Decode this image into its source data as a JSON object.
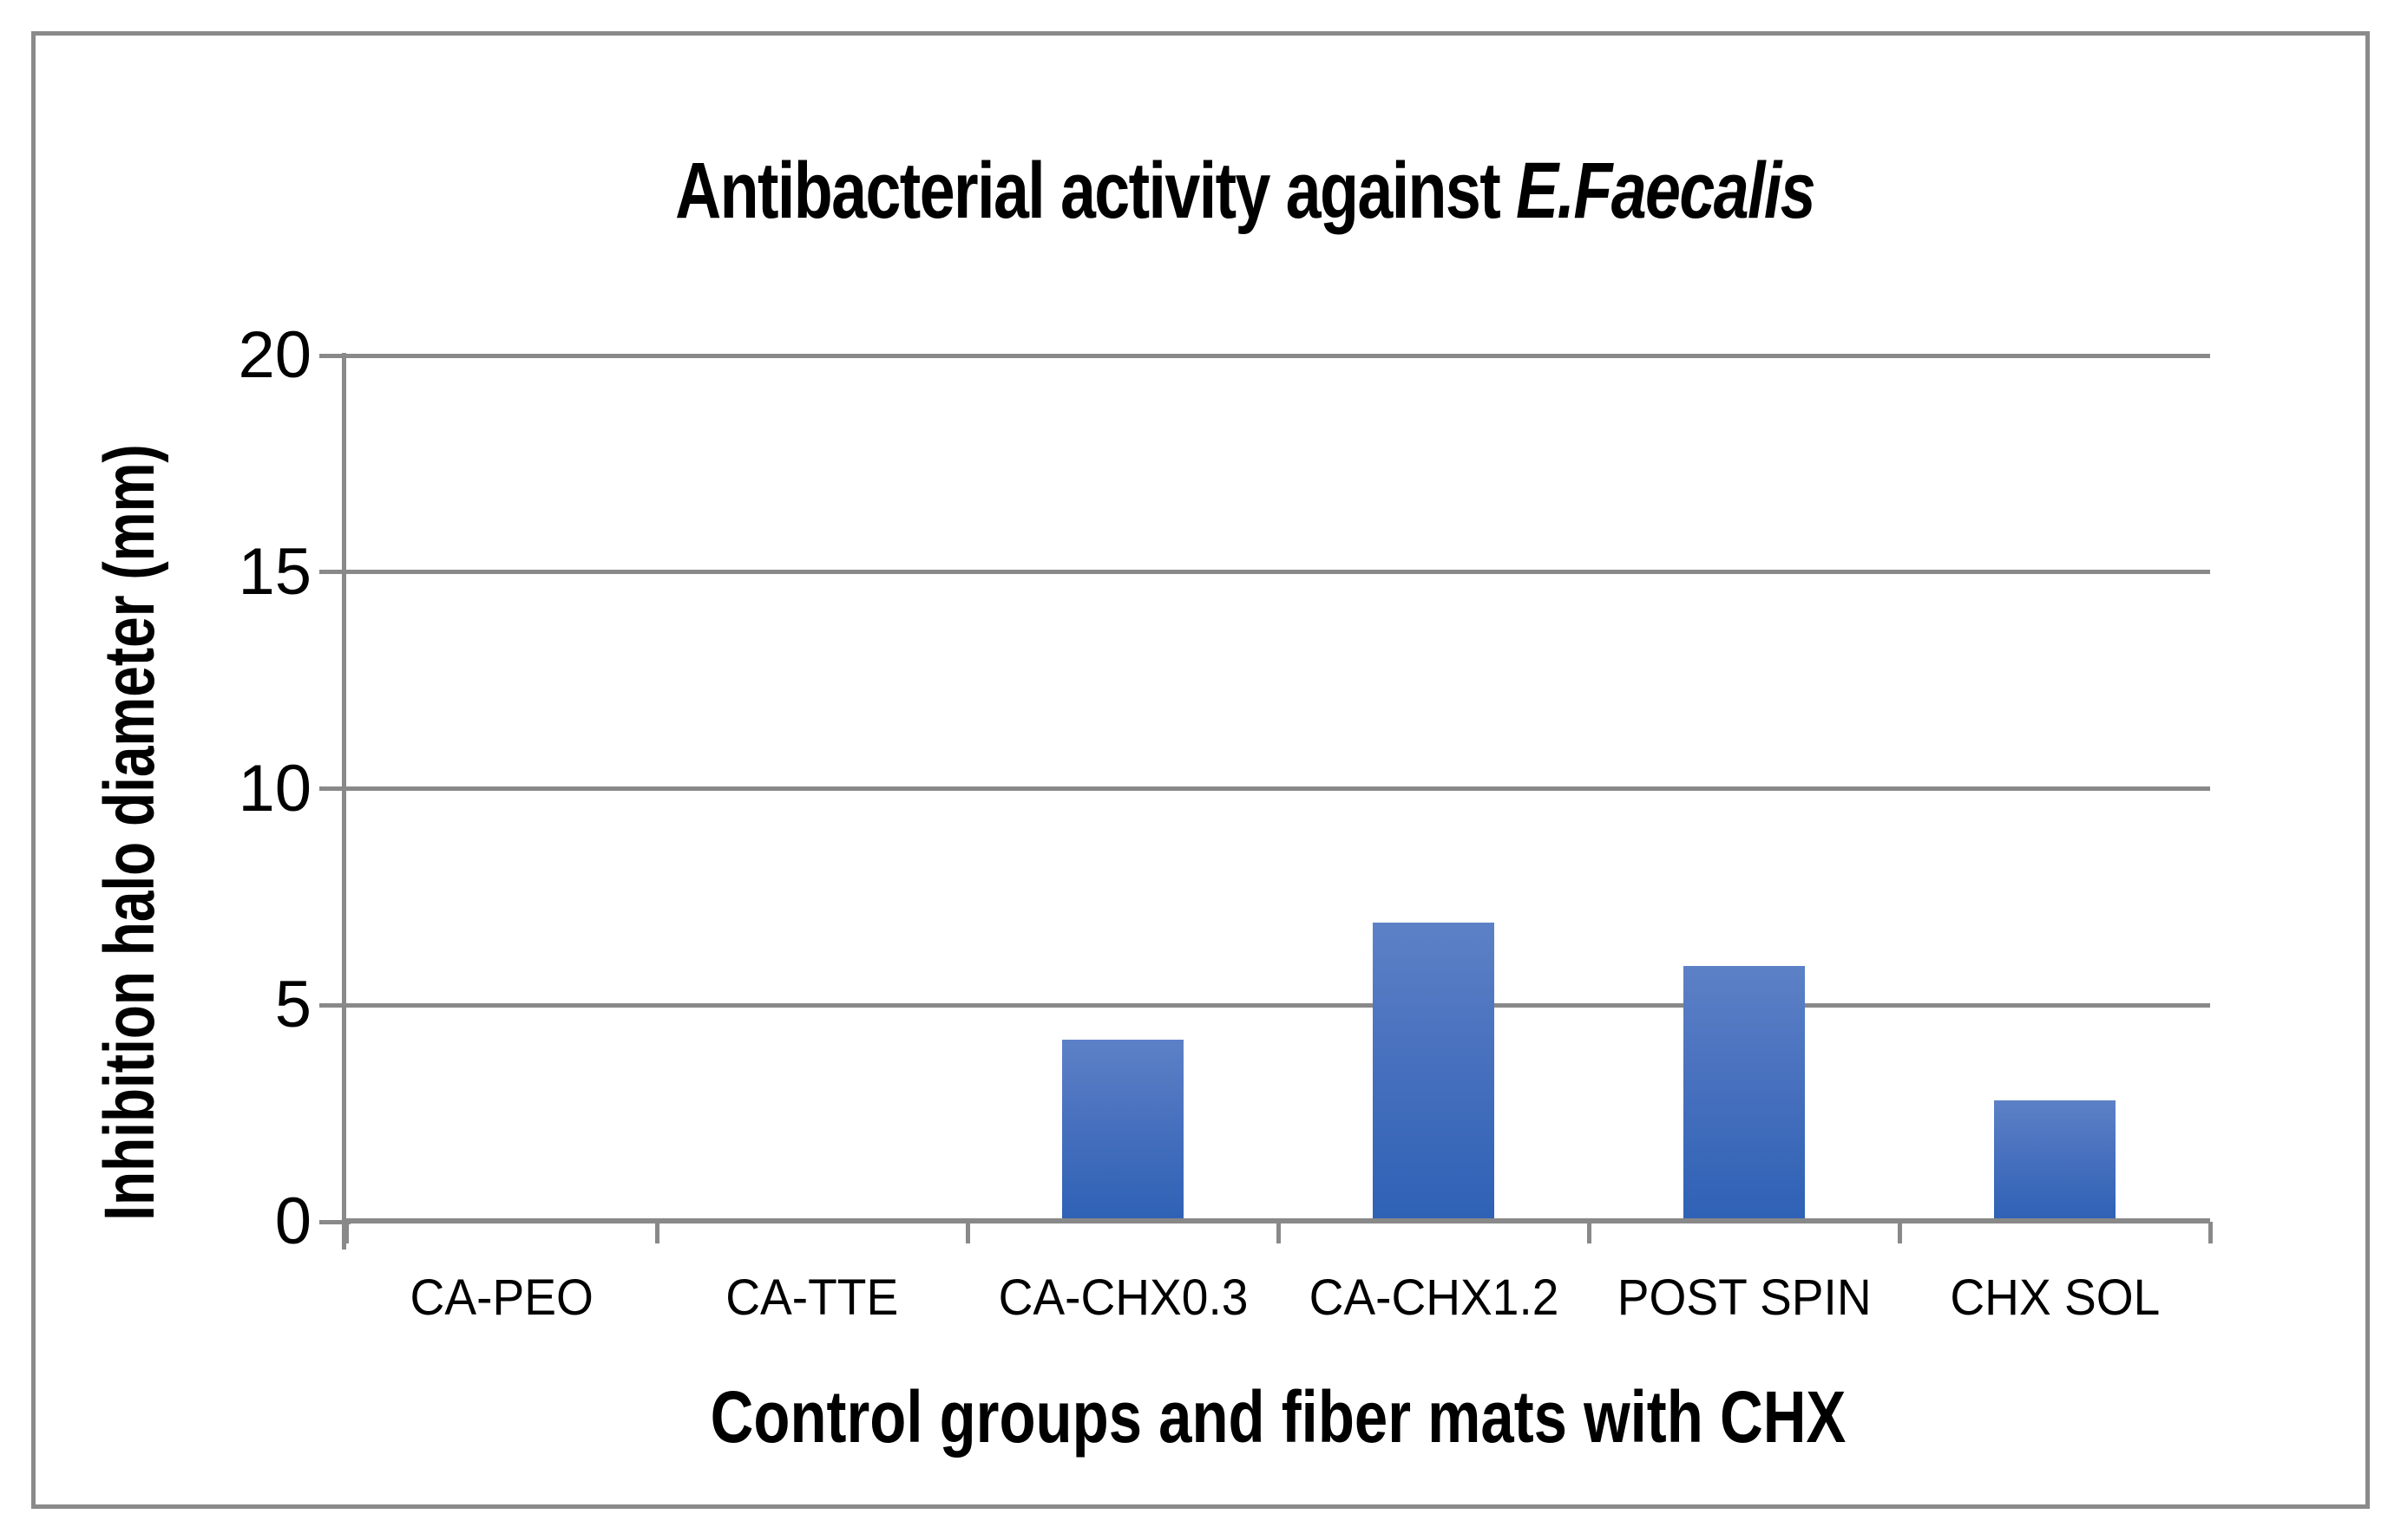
{
  "figure": {
    "title_prefix": "Antibacterial activity against ",
    "title_italic": "E.Faecalis",
    "frame_color": "#8a8a8a"
  },
  "chart_data": {
    "type": "bar",
    "title": "Antibacterial activity against E.Faecalis",
    "title_italic_part": "E.Faecalis",
    "xlabel": "Control groups and fiber mats with CHX",
    "ylabel": "Inhibition halo diameter (mm)",
    "categories": [
      "CA-PEO",
      "CA-TTE",
      "CA-CHX0.3",
      "CA-CHX1.2",
      "POST SPIN",
      "CHX SOL"
    ],
    "values": [
      0,
      0,
      4.2,
      6.9,
      5.9,
      2.8
    ],
    "ylim": [
      0,
      20
    ],
    "yticks": [
      0,
      5,
      10,
      15,
      20
    ],
    "grid": true,
    "legend": "none",
    "axis_color": "#898989",
    "bar_color_top": "#5d81c7",
    "bar_color_bottom": "#2e61b5"
  }
}
